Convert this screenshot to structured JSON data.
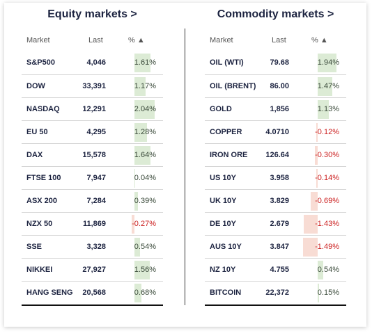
{
  "equity": {
    "title": "Equity markets >",
    "headers": {
      "market": "Market",
      "last": "Last",
      "pct": "% ▲"
    },
    "rows": [
      {
        "name": "S&P500",
        "last": "4,046",
        "pct": "1.61%",
        "value": 1.61
      },
      {
        "name": "DOW",
        "last": "33,391",
        "pct": "1.17%",
        "value": 1.17
      },
      {
        "name": "NASDAQ",
        "last": "12,291",
        "pct": "2.04%",
        "value": 2.04
      },
      {
        "name": "EU 50",
        "last": "4,295",
        "pct": "1.28%",
        "value": 1.28
      },
      {
        "name": "DAX",
        "last": "15,578",
        "pct": "1.64%",
        "value": 1.64
      },
      {
        "name": "FTSE 100",
        "last": "7,947",
        "pct": "0.04%",
        "value": 0.04
      },
      {
        "name": "ASX 200",
        "last": "7,284",
        "pct": "0.39%",
        "value": 0.39
      },
      {
        "name": "NZX 50",
        "last": "11,869",
        "pct": "-0.27%",
        "value": -0.27
      },
      {
        "name": "SSE",
        "last": "3,328",
        "pct": "0.54%",
        "value": 0.54
      },
      {
        "name": "NIKKEI",
        "last": "27,927",
        "pct": "1.56%",
        "value": 1.56
      },
      {
        "name": "HANG SENG",
        "last": "20,568",
        "pct": "0.68%",
        "value": 0.68
      }
    ]
  },
  "commodity": {
    "title": "Commodity markets >",
    "headers": {
      "market": "Market",
      "last": "Last",
      "pct": "% ▲"
    },
    "rows": [
      {
        "name": "OIL (WTI)",
        "last": "79.68",
        "pct": "1.94%",
        "value": 1.94
      },
      {
        "name": "OIL (BRENT)",
        "last": "86.00",
        "pct": "1.47%",
        "value": 1.47
      },
      {
        "name": "GOLD",
        "last": "1,856",
        "pct": "1.13%",
        "value": 1.13
      },
      {
        "name": "COPPER",
        "last": "4.0710",
        "pct": "-0.12%",
        "value": -0.12
      },
      {
        "name": "IRON ORE",
        "last": "126.64",
        "pct": "-0.30%",
        "value": -0.3
      },
      {
        "name": "US 10Y",
        "last": "3.958",
        "pct": "-0.14%",
        "value": -0.14
      },
      {
        "name": "UK 10Y",
        "last": "3.829",
        "pct": "-0.69%",
        "value": -0.69
      },
      {
        "name": "DE 10Y",
        "last": "2.679",
        "pct": "-1.43%",
        "value": -1.43
      },
      {
        "name": "AUS 10Y",
        "last": "3.847",
        "pct": "-1.49%",
        "value": -1.49
      },
      {
        "name": "NZ 10Y",
        "last": "4.755",
        "pct": "0.54%",
        "value": 0.54
      },
      {
        "name": "BITCOIN",
        "last": "22,372",
        "pct": "0.15%",
        "value": 0.15
      }
    ]
  },
  "colors": {
    "positive_bar": "#dcebd5",
    "negative_bar": "#f8dcd4",
    "negative_text": "#cc2222",
    "title": "#1c2340"
  }
}
